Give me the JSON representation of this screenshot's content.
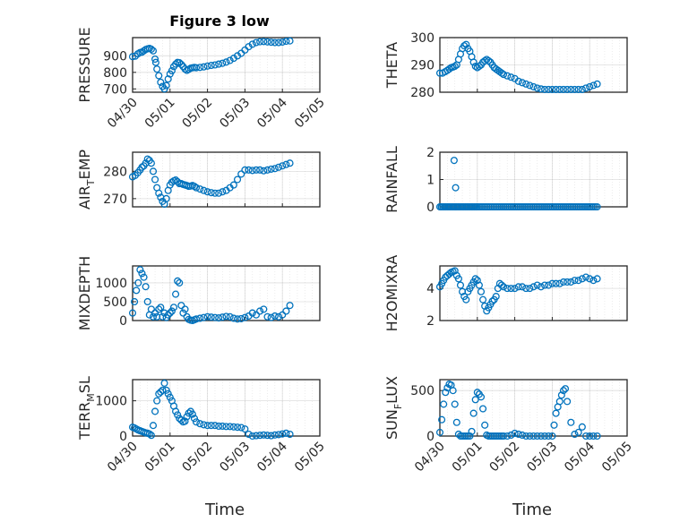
{
  "figure": {
    "title": "Figure 3 low",
    "xlabel": "Time"
  },
  "colors": {
    "marker": "#0072BD",
    "axes": "#262626",
    "grid": "#b7b7b7"
  },
  "chart_data": [
    {
      "type": "scatter",
      "panel": "top-left",
      "title": "Figure 3 low",
      "ylabel": "PRESSURE",
      "ylim": [
        680,
        1010
      ],
      "yticks": [
        "700",
        "800",
        "900"
      ],
      "xlim": [
        "04/30",
        "05/05"
      ],
      "xticks": [
        "04/30",
        "05/01",
        "05/02",
        "05/03",
        "05/04",
        "05/05"
      ],
      "grid": true,
      "x": [
        0.0,
        0.07,
        0.14,
        0.2,
        0.25,
        0.3,
        0.35,
        0.4,
        0.45,
        0.5,
        0.55,
        0.6,
        0.62,
        0.65,
        0.7,
        0.75,
        0.8,
        0.85,
        0.9,
        0.95,
        1.0,
        1.05,
        1.1,
        1.15,
        1.2,
        1.25,
        1.3,
        1.35,
        1.4,
        1.45,
        1.5,
        1.55,
        1.6,
        1.65,
        1.7,
        1.8,
        1.9,
        2.0,
        2.1,
        2.2,
        2.3,
        2.4,
        2.5,
        2.6,
        2.7,
        2.8,
        2.9,
        3.0,
        3.1,
        3.2,
        3.3,
        3.4,
        3.5,
        3.6,
        3.7,
        3.8,
        3.9,
        4.0,
        4.1,
        4.2
      ],
      "y": [
        895,
        898,
        912,
        920,
        922,
        930,
        938,
        942,
        945,
        940,
        930,
        880,
        860,
        820,
        780,
        740,
        715,
        700,
        720,
        760,
        790,
        810,
        835,
        850,
        860,
        858,
        848,
        835,
        820,
        812,
        818,
        825,
        828,
        830,
        828,
        830,
        833,
        838,
        842,
        845,
        850,
        855,
        862,
        872,
        885,
        900,
        915,
        935,
        955,
        970,
        980,
        985,
        986,
        984,
        982,
        980,
        980,
        983,
        988,
        990
      ]
    },
    {
      "type": "scatter",
      "panel": "top-right",
      "ylabel": "THETA",
      "ylim": [
        280,
        300
      ],
      "yticks": [
        "280",
        "290",
        "300"
      ],
      "xlim": [
        "04/30",
        "05/05"
      ],
      "grid": true,
      "x": [
        0.0,
        0.07,
        0.14,
        0.2,
        0.25,
        0.3,
        0.35,
        0.4,
        0.45,
        0.5,
        0.55,
        0.6,
        0.65,
        0.7,
        0.75,
        0.8,
        0.85,
        0.9,
        0.95,
        1.0,
        1.05,
        1.1,
        1.15,
        1.2,
        1.25,
        1.3,
        1.35,
        1.4,
        1.45,
        1.5,
        1.55,
        1.6,
        1.65,
        1.7,
        1.8,
        1.9,
        2.0,
        2.1,
        2.2,
        2.3,
        2.4,
        2.5,
        2.6,
        2.7,
        2.8,
        2.9,
        3.0,
        3.1,
        3.2,
        3.3,
        3.4,
        3.5,
        3.6,
        3.7,
        3.8,
        3.9,
        4.0,
        4.1,
        4.2
      ],
      "y": [
        287,
        287,
        287.5,
        288,
        288.5,
        289,
        289.2,
        289.5,
        290,
        292,
        294,
        296,
        297,
        297.5,
        296,
        295,
        293,
        291,
        289.5,
        289,
        289.5,
        290,
        291,
        291.5,
        292,
        291.5,
        291,
        290,
        289,
        288.5,
        288,
        287.5,
        287,
        286.5,
        286,
        285.5,
        285,
        284,
        283.5,
        283,
        282.5,
        282,
        281.5,
        281.2,
        281,
        281,
        281,
        281,
        281,
        281,
        281,
        281,
        281,
        281,
        281,
        281.5,
        282,
        282.5,
        283
      ]
    },
    {
      "type": "scatter",
      "panel": "second-left",
      "ylabel": "AIR_TEMP",
      "ylim": [
        267,
        287
      ],
      "yticks": [
        "270",
        "280"
      ],
      "xlim": [
        "04/30",
        "05/05"
      ],
      "grid": true,
      "x": [
        0.0,
        0.07,
        0.14,
        0.2,
        0.25,
        0.3,
        0.35,
        0.4,
        0.45,
        0.5,
        0.55,
        0.6,
        0.65,
        0.7,
        0.75,
        0.8,
        0.85,
        0.9,
        0.95,
        1.0,
        1.05,
        1.1,
        1.15,
        1.2,
        1.25,
        1.3,
        1.35,
        1.4,
        1.45,
        1.5,
        1.55,
        1.6,
        1.65,
        1.7,
        1.8,
        1.9,
        2.0,
        2.1,
        2.2,
        2.3,
        2.4,
        2.5,
        2.6,
        2.7,
        2.8,
        2.9,
        3.0,
        3.1,
        3.2,
        3.3,
        3.4,
        3.5,
        3.6,
        3.7,
        3.8,
        3.9,
        4.0,
        4.1,
        4.2
      ],
      "y": [
        278,
        278.5,
        279.5,
        280.5,
        281.5,
        282,
        283,
        284.5,
        284,
        283,
        280,
        277,
        274,
        272,
        270.5,
        269,
        268,
        270,
        273,
        275,
        276,
        276.5,
        276.8,
        276.2,
        275.5,
        275.5,
        275.2,
        275,
        274.8,
        274.5,
        274.6,
        274.8,
        274.5,
        274,
        273.5,
        273,
        272.5,
        272.2,
        272,
        272,
        272.5,
        273,
        274,
        275,
        277,
        279,
        280.5,
        280.5,
        280.3,
        280.5,
        280.5,
        280.2,
        280.5,
        280.8,
        281,
        281.5,
        282,
        282.5,
        283
      ]
    },
    {
      "type": "scatter",
      "panel": "second-right",
      "ylabel": "RAINFALL",
      "ylim": [
        0,
        2
      ],
      "yticks": [
        "0",
        "1",
        "2"
      ],
      "xlim": [
        "04/30",
        "05/05"
      ],
      "grid": true,
      "x": [
        0.0,
        0.04,
        0.08,
        0.12,
        0.16,
        0.2,
        0.24,
        0.28,
        0.32,
        0.36,
        0.4,
        0.44,
        0.48,
        0.52,
        0.56,
        0.6,
        0.64,
        0.68,
        0.72,
        0.76,
        0.8,
        0.84,
        0.88,
        0.92,
        0.96,
        1.0,
        1.05,
        1.1,
        1.15,
        1.2,
        1.25,
        1.3,
        1.35,
        1.4,
        1.45,
        1.5,
        1.55,
        1.6,
        1.65,
        1.7,
        1.75,
        1.8,
        1.85,
        1.9,
        1.95,
        2.0,
        2.05,
        2.1,
        2.15,
        2.2,
        2.25,
        2.3,
        2.35,
        2.4,
        2.45,
        2.5,
        2.55,
        2.6,
        2.65,
        2.7,
        2.75,
        2.8,
        2.85,
        2.9,
        2.95,
        3.0,
        3.05,
        3.1,
        3.15,
        3.2,
        3.25,
        3.3,
        3.35,
        3.4,
        3.45,
        3.5,
        3.55,
        3.6,
        3.65,
        3.7,
        3.75,
        3.8,
        3.85,
        3.9,
        3.95,
        4.0,
        4.05,
        4.1,
        4.15,
        4.2,
        0.38,
        0.42
      ],
      "y": [
        0,
        0,
        0,
        0,
        0,
        0,
        0,
        0,
        0,
        0,
        0,
        0,
        0,
        0,
        0,
        0,
        0,
        0,
        0,
        0,
        0,
        0,
        0,
        0,
        0,
        0,
        0,
        0,
        0,
        0,
        0,
        0,
        0,
        0,
        0,
        0,
        0,
        0,
        0,
        0,
        0,
        0,
        0,
        0,
        0,
        0,
        0,
        0,
        0,
        0,
        0,
        0,
        0,
        0,
        0,
        0,
        0,
        0,
        0,
        0,
        0,
        0,
        0,
        0,
        0,
        0,
        0,
        0,
        0,
        0,
        0,
        0,
        0,
        0,
        0,
        0,
        0,
        0,
        0,
        0,
        0,
        0,
        0,
        0,
        0,
        0,
        0,
        0,
        0,
        0,
        1.7,
        0.7
      ]
    },
    {
      "type": "scatter",
      "panel": "third-left",
      "ylabel": "MIXDEPTH",
      "ylim": [
        0,
        1450
      ],
      "yticks": [
        "0",
        "500",
        "1000"
      ],
      "xlim": [
        "04/30",
        "05/05"
      ],
      "grid": true,
      "x": [
        0.0,
        0.05,
        0.1,
        0.15,
        0.2,
        0.25,
        0.3,
        0.35,
        0.4,
        0.45,
        0.5,
        0.55,
        0.6,
        0.65,
        0.7,
        0.75,
        0.8,
        0.85,
        0.9,
        0.95,
        1.0,
        1.05,
        1.1,
        1.15,
        1.2,
        1.25,
        1.3,
        1.35,
        1.4,
        1.45,
        1.5,
        1.55,
        1.6,
        1.65,
        1.7,
        1.8,
        1.9,
        2.0,
        2.1,
        2.2,
        2.3,
        2.4,
        2.5,
        2.6,
        2.7,
        2.8,
        2.9,
        3.0,
        3.1,
        3.2,
        3.3,
        3.4,
        3.5,
        3.6,
        3.7,
        3.8,
        3.9,
        4.0,
        4.1,
        4.2
      ],
      "y": [
        200,
        500,
        800,
        1000,
        1350,
        1250,
        1150,
        900,
        500,
        150,
        300,
        100,
        200,
        100,
        300,
        350,
        100,
        200,
        80,
        150,
        200,
        250,
        350,
        700,
        1050,
        1000,
        400,
        200,
        300,
        100,
        30,
        10,
        0,
        20,
        40,
        60,
        80,
        100,
        90,
        80,
        70,
        90,
        110,
        100,
        60,
        40,
        50,
        80,
        120,
        200,
        150,
        250,
        300,
        100,
        80,
        120,
        100,
        150,
        250,
        400
      ]
    },
    {
      "type": "scatter",
      "panel": "third-right",
      "ylabel": "H2OMIXRA",
      "ylim": [
        2,
        5.4
      ],
      "yticks": [
        "2",
        "4"
      ],
      "xlim": [
        "04/30",
        "05/05"
      ],
      "grid": true,
      "x": [
        0.0,
        0.05,
        0.1,
        0.15,
        0.2,
        0.25,
        0.3,
        0.35,
        0.4,
        0.45,
        0.5,
        0.55,
        0.6,
        0.65,
        0.7,
        0.75,
        0.8,
        0.85,
        0.9,
        0.95,
        1.0,
        1.05,
        1.1,
        1.15,
        1.2,
        1.25,
        1.3,
        1.35,
        1.4,
        1.45,
        1.5,
        1.55,
        1.6,
        1.65,
        1.7,
        1.8,
        1.9,
        2.0,
        2.1,
        2.2,
        2.3,
        2.4,
        2.5,
        2.6,
        2.7,
        2.8,
        2.9,
        3.0,
        3.1,
        3.2,
        3.3,
        3.4,
        3.5,
        3.6,
        3.7,
        3.8,
        3.9,
        4.0,
        4.1,
        4.2
      ],
      "y": [
        4.1,
        4.3,
        4.5,
        4.7,
        4.8,
        4.9,
        5.0,
        5.05,
        5.1,
        4.8,
        4.6,
        4.2,
        3.8,
        3.5,
        3.3,
        3.8,
        4.0,
        4.2,
        4.4,
        4.6,
        4.5,
        4.2,
        3.8,
        3.3,
        2.9,
        2.6,
        2.8,
        3.0,
        3.2,
        3.3,
        3.5,
        4.0,
        4.3,
        4.2,
        4.1,
        4.0,
        4.0,
        4.0,
        4.1,
        4.1,
        4.0,
        4.0,
        4.1,
        4.2,
        4.1,
        4.2,
        4.2,
        4.3,
        4.3,
        4.3,
        4.4,
        4.4,
        4.4,
        4.5,
        4.5,
        4.6,
        4.7,
        4.6,
        4.5,
        4.6
      ]
    },
    {
      "type": "scatter",
      "panel": "bottom-left",
      "ylabel": "TERR_MSL",
      "ylim": [
        0,
        1600
      ],
      "yticks": [
        "0",
        "1000"
      ],
      "xlim": [
        "04/30",
        "05/05"
      ],
      "xticks": [
        "04/30",
        "05/01",
        "05/02",
        "05/03",
        "05/04",
        "05/05"
      ],
      "grid": true,
      "x": [
        0.0,
        0.05,
        0.1,
        0.15,
        0.2,
        0.25,
        0.3,
        0.35,
        0.4,
        0.45,
        0.5,
        0.55,
        0.6,
        0.65,
        0.7,
        0.75,
        0.8,
        0.85,
        0.9,
        0.95,
        1.0,
        1.05,
        1.1,
        1.15,
        1.2,
        1.25,
        1.3,
        1.35,
        1.4,
        1.45,
        1.5,
        1.55,
        1.6,
        1.65,
        1.7,
        1.8,
        1.9,
        2.0,
        2.1,
        2.2,
        2.3,
        2.4,
        2.5,
        2.6,
        2.7,
        2.8,
        2.9,
        3.0,
        3.1,
        3.2,
        3.3,
        3.4,
        3.5,
        3.6,
        3.7,
        3.8,
        3.9,
        4.0,
        4.1,
        4.2
      ],
      "y": [
        250,
        230,
        200,
        170,
        150,
        130,
        110,
        90,
        80,
        60,
        20,
        300,
        700,
        1000,
        1200,
        1250,
        1300,
        1500,
        1300,
        1200,
        1100,
        1000,
        850,
        700,
        600,
        500,
        450,
        400,
        420,
        550,
        650,
        700,
        620,
        500,
        400,
        350,
        320,
        300,
        300,
        300,
        280,
        280,
        270,
        270,
        260,
        250,
        240,
        200,
        50,
        0,
        10,
        20,
        30,
        20,
        10,
        30,
        40,
        60,
        80,
        50
      ]
    },
    {
      "type": "scatter",
      "panel": "bottom-right",
      "ylabel": "SUN_FLUX",
      "ylim": [
        0,
        620
      ],
      "yticks": [
        "0",
        "500"
      ],
      "xlim": [
        "04/30",
        "05/05"
      ],
      "xticks": [
        "04/30",
        "05/01",
        "05/02",
        "05/03",
        "05/04",
        "05/05"
      ],
      "grid": true,
      "x": [
        0.0,
        0.05,
        0.1,
        0.15,
        0.2,
        0.25,
        0.3,
        0.35,
        0.4,
        0.45,
        0.5,
        0.55,
        0.6,
        0.65,
        0.7,
        0.75,
        0.8,
        0.85,
        0.9,
        0.95,
        1.0,
        1.05,
        1.1,
        1.15,
        1.2,
        1.25,
        1.3,
        1.35,
        1.4,
        1.45,
        1.5,
        1.55,
        1.6,
        1.65,
        1.7,
        1.8,
        1.9,
        2.0,
        2.1,
        2.2,
        2.3,
        2.4,
        2.5,
        2.6,
        2.7,
        2.8,
        2.9,
        3.0,
        3.05,
        3.1,
        3.15,
        3.2,
        3.25,
        3.3,
        3.35,
        3.4,
        3.5,
        3.6,
        3.7,
        3.8,
        3.9,
        4.0,
        4.1,
        4.2
      ],
      "y": [
        40,
        180,
        350,
        480,
        530,
        570,
        560,
        500,
        350,
        150,
        20,
        0,
        0,
        0,
        0,
        0,
        0,
        50,
        250,
        400,
        480,
        460,
        430,
        300,
        120,
        10,
        0,
        0,
        0,
        0,
        0,
        0,
        0,
        0,
        0,
        0,
        10,
        30,
        20,
        10,
        0,
        0,
        0,
        0,
        0,
        0,
        0,
        0,
        120,
        250,
        320,
        380,
        450,
        500,
        520,
        380,
        150,
        20,
        40,
        100,
        0,
        0,
        0,
        0
      ]
    }
  ]
}
